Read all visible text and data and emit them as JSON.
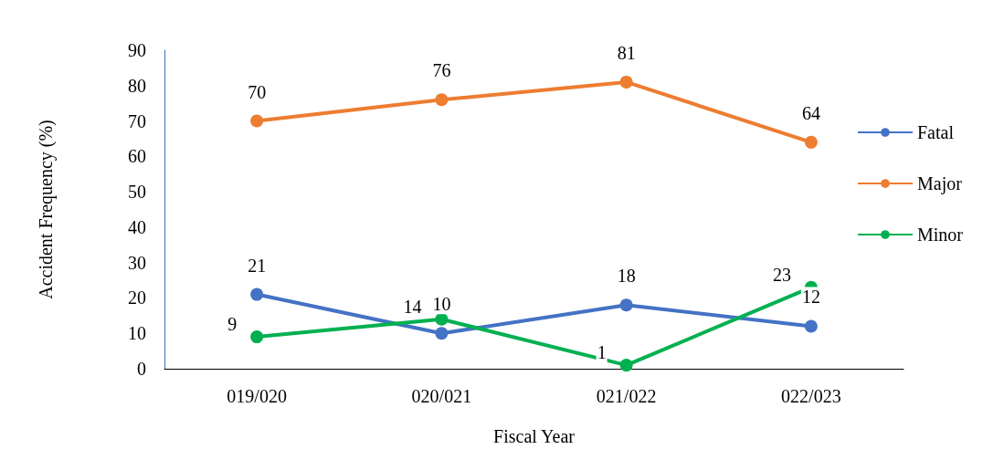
{
  "chart_data": {
    "type": "line",
    "xlabel": "Fiscal Year",
    "ylabel": "Accident Frequency (%)",
    "categories": [
      "019/020",
      "020/021",
      "021/022",
      "022/023"
    ],
    "series": [
      {
        "name": "Fatal",
        "color": "#4472c4",
        "values": [
          21,
          10,
          18,
          12
        ]
      },
      {
        "name": "Major",
        "color": "#ed7d31",
        "values": [
          70,
          76,
          81,
          64
        ]
      },
      {
        "name": "Minor",
        "color": "#00b050",
        "values": [
          9,
          14,
          1,
          23
        ]
      }
    ],
    "ylim": [
      0,
      90
    ],
    "yticks": [
      0,
      10,
      20,
      30,
      40,
      50,
      60,
      70,
      80,
      90
    ],
    "grid": false,
    "legend": "right",
    "marker": "circle",
    "line_style": "solid",
    "data_labels": true
  }
}
